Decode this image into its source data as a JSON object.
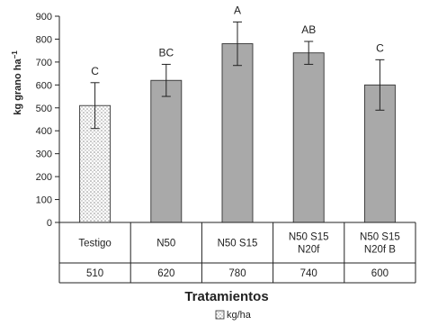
{
  "chart_data": {
    "type": "bar",
    "categories": [
      [
        "Testigo"
      ],
      [
        "N50"
      ],
      [
        "N50 S15"
      ],
      [
        "N50 S15",
        "N20f"
      ],
      [
        "N50 S15",
        "N20f  B"
      ]
    ],
    "series": [
      {
        "name": "kg/ha",
        "values": [
          510,
          620,
          780,
          740,
          600
        ],
        "error": [
          100,
          70,
          95,
          50,
          110
        ],
        "significance": [
          "C",
          "BC",
          "A",
          "AB",
          "C"
        ]
      }
    ],
    "table_values": [
      "510",
      "620",
      "780",
      "740",
      "600"
    ],
    "title": "",
    "xlabel": "Tratamientos",
    "ylabel": "kg grano ha",
    "ylabel_superscript": "−1",
    "ylim": [
      0,
      900
    ],
    "yticks": [
      0,
      100,
      200,
      300,
      400,
      500,
      600,
      700,
      800,
      900
    ],
    "grid": false,
    "legend": {
      "label": "kg/ha",
      "placement": "bottom-center"
    },
    "colors": {
      "bar_fill": "#a9a9a9",
      "control_pattern": "#9a9a9a",
      "axis": "#222222"
    }
  }
}
